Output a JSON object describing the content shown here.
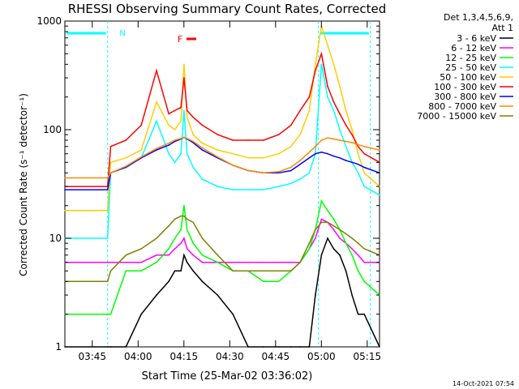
{
  "chart_data": {
    "type": "line",
    "title": "RHESSI Observing Summary Count Rates, Corrected",
    "xlabel": "Start Time (25-Mar-02 03:36:02)",
    "ylabel": "Corrected Count Rate (s⁻¹ detector⁻¹)",
    "y_scale": "log",
    "xlim_minutes": [
      0,
      103
    ],
    "ylim": [
      1,
      1000
    ],
    "x_ticks": [
      "03:45",
      "04:00",
      "04:15",
      "04:30",
      "04:45",
      "05:00",
      "05:15"
    ],
    "x_tick_minutes": [
      8.97,
      23.97,
      38.97,
      53.97,
      68.97,
      83.97,
      98.97
    ],
    "y_ticks": [
      "1",
      "10",
      "100",
      "1000"
    ],
    "y_tick_values": [
      1,
      10,
      100,
      1000
    ],
    "legend_header": [
      "Det 1,3,4,5,6,9,",
      "Att 1"
    ],
    "legend_placement": "right",
    "annotations": {
      "night_marker": "N",
      "flare_marker": "F"
    },
    "x_minutes": [
      0,
      14,
      15,
      20,
      25,
      30,
      34,
      36,
      38,
      39,
      40,
      42,
      45,
      50,
      55,
      60,
      65,
      70,
      74,
      77,
      80,
      82,
      84,
      86,
      88,
      90,
      92,
      94,
      96,
      98,
      103
    ],
    "series": [
      {
        "name": "3 - 6 keV",
        "color": "#000000",
        "values": [
          1,
          1,
          1,
          1,
          2,
          3,
          4,
          5,
          5,
          7,
          6,
          5,
          4,
          3,
          2,
          1,
          1,
          1,
          1,
          1,
          1,
          3,
          7,
          10,
          8,
          7,
          5,
          3,
          2,
          2,
          1
        ]
      },
      {
        "name": "6 - 12 keV",
        "color": "#ff00ff",
        "values": [
          6,
          6,
          6,
          6,
          6,
          7,
          7,
          8,
          9,
          10,
          8,
          7,
          6,
          6,
          6,
          6,
          6,
          6,
          6,
          6,
          8,
          10,
          15,
          14,
          12,
          10,
          9,
          8,
          7,
          6,
          6
        ]
      },
      {
        "name": "12 - 25 keV",
        "color": "#00ff00",
        "values": [
          2,
          2,
          2,
          5,
          5,
          6,
          8,
          10,
          12,
          20,
          12,
          9,
          7,
          6,
          5,
          5,
          4,
          4,
          5,
          6,
          8,
          12,
          22,
          18,
          15,
          12,
          9,
          7,
          5,
          4,
          3
        ]
      },
      {
        "name": "25 - 50 keV",
        "color": "#00ffff",
        "values": [
          10,
          10,
          40,
          45,
          55,
          120,
          60,
          50,
          60,
          150,
          60,
          45,
          35,
          30,
          28,
          28,
          28,
          30,
          32,
          35,
          40,
          60,
          400,
          200,
          150,
          100,
          70,
          50,
          40,
          30,
          25
        ]
      },
      {
        "name": "50 - 100 keV",
        "color": "#ffcc00",
        "values": [
          18,
          18,
          50,
          55,
          65,
          180,
          110,
          100,
          120,
          400,
          130,
          90,
          75,
          65,
          60,
          55,
          55,
          60,
          70,
          90,
          150,
          400,
          900,
          600,
          400,
          250,
          150,
          100,
          60,
          40,
          30
        ]
      },
      {
        "name": "100 - 300 keV",
        "color": "#ff0000",
        "values": [
          30,
          30,
          70,
          80,
          110,
          350,
          140,
          150,
          160,
          300,
          150,
          130,
          110,
          90,
          80,
          80,
          80,
          90,
          110,
          150,
          200,
          350,
          500,
          250,
          180,
          140,
          110,
          90,
          70,
          60,
          50
        ]
      },
      {
        "name": "300 - 800 keV",
        "color": "#0000ff",
        "values": [
          28,
          28,
          40,
          45,
          55,
          65,
          72,
          78,
          82,
          85,
          82,
          76,
          65,
          55,
          47,
          42,
          40,
          40,
          42,
          48,
          55,
          60,
          62,
          60,
          57,
          55,
          52,
          50,
          48,
          45,
          40
        ]
      },
      {
        "name": "800 - 7000 keV",
        "color": "#ff8800",
        "values": [
          36,
          36,
          40,
          46,
          56,
          67,
          75,
          80,
          83,
          85,
          83,
          78,
          68,
          56,
          47,
          42,
          40,
          41,
          45,
          52,
          62,
          70,
          80,
          84,
          82,
          80,
          78,
          76,
          73,
          70,
          65
        ]
      },
      {
        "name": "7000 - 15000 keV",
        "color": "#808000",
        "values": [
          4,
          4,
          5,
          7,
          8,
          10,
          13,
          15,
          16,
          16,
          15,
          14,
          10,
          7,
          5,
          5,
          5,
          5,
          5,
          6,
          9,
          12,
          14,
          14,
          13,
          12,
          11,
          10,
          9,
          8,
          7
        ]
      }
    ]
  },
  "footer_timestamp": "14-Oct-2021 07:54"
}
